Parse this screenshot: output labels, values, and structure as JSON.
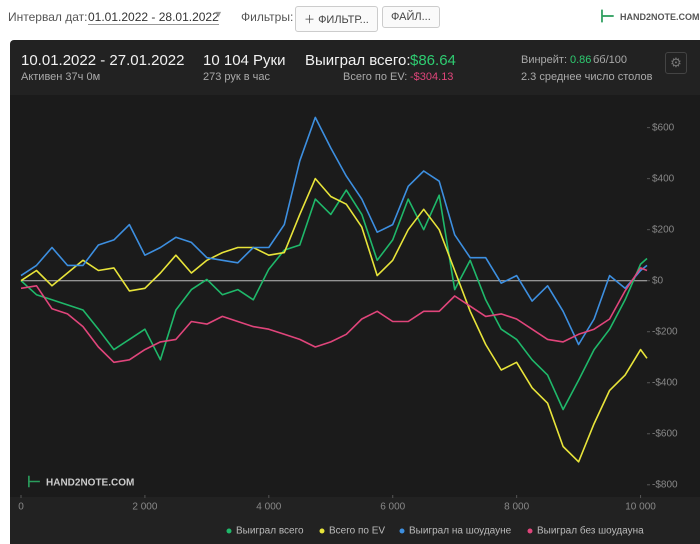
{
  "toolbar": {
    "date_label": "Интервал дат:",
    "date_range": "01.01.2022 - 28.01.2022",
    "filters_label": "Фильтры:",
    "filter_button": "ФИЛЬТР...",
    "file_button": "ФАЙЛ...",
    "logo": "HAND2NOTE.COM"
  },
  "stats": {
    "period": "10.01.2022 - 27.01.2022",
    "active": "Активен 37ч 0м",
    "hands": "10 104 Руки",
    "hands_per_hour": "273 рук в час",
    "won_label": "Выиграл всего:",
    "won_value": "$86.64",
    "ev_label": "Всего по EV:",
    "ev_value": "-$304.13",
    "winrate_label": "Винрейт:",
    "winrate_value": "0.86",
    "winrate_unit": "бб/100",
    "tables": "2.3 среднее число столов"
  },
  "watermark": "HAND2NOTE.COM",
  "chart_data": {
    "type": "line",
    "x": [
      0,
      250,
      500,
      750,
      1000,
      1250,
      1500,
      1750,
      2000,
      2250,
      2500,
      2750,
      3000,
      3250,
      3500,
      3750,
      4000,
      4250,
      4500,
      4750,
      5000,
      5250,
      5500,
      5750,
      6000,
      6250,
      6500,
      6750,
      7000,
      7250,
      7500,
      7750,
      8000,
      8250,
      8500,
      8750,
      9000,
      9250,
      9500,
      9750,
      10000,
      10104
    ],
    "series": [
      {
        "name": "Выиграл всего",
        "color": "#1fb86a",
        "values": [
          0,
          -55,
          -75,
          -95,
          -115,
          -190,
          -270,
          -230,
          -190,
          -310,
          -115,
          -35,
          5,
          -55,
          -35,
          -75,
          45,
          120,
          140,
          320,
          260,
          355,
          260,
          80,
          160,
          320,
          200,
          335,
          -35,
          80,
          -75,
          -190,
          -230,
          -310,
          -370,
          -505,
          -390,
          -270,
          -190,
          -75,
          65,
          87
        ]
      },
      {
        "name": "Всего по EV",
        "color": "#e8e43a",
        "values": [
          0,
          40,
          -20,
          30,
          80,
          40,
          50,
          -40,
          -30,
          30,
          100,
          30,
          80,
          110,
          130,
          130,
          100,
          110,
          260,
          400,
          330,
          300,
          210,
          20,
          80,
          200,
          280,
          200,
          40,
          -120,
          -250,
          -350,
          -320,
          -420,
          -480,
          -650,
          -710,
          -560,
          -430,
          -370,
          -270,
          -304
        ]
      },
      {
        "name": "Выиграл на шоудауне",
        "color": "#3d8fe0",
        "values": [
          20,
          60,
          130,
          60,
          60,
          140,
          160,
          220,
          100,
          130,
          170,
          150,
          90,
          80,
          70,
          130,
          130,
          220,
          470,
          640,
          520,
          410,
          320,
          190,
          220,
          370,
          430,
          390,
          180,
          90,
          90,
          -10,
          20,
          -80,
          -20,
          -120,
          -250,
          -150,
          20,
          -30,
          40,
          60
        ]
      },
      {
        "name": "Выиграл без шоудауна",
        "color": "#e0457b",
        "values": [
          -30,
          -20,
          -110,
          -130,
          -180,
          -260,
          -320,
          -310,
          -270,
          -240,
          -230,
          -160,
          -170,
          -140,
          -160,
          -180,
          -190,
          -210,
          -230,
          -260,
          -240,
          -210,
          -150,
          -120,
          -160,
          -160,
          -120,
          -120,
          -60,
          -100,
          -140,
          -130,
          -150,
          -190,
          -230,
          -240,
          -210,
          -190,
          -150,
          -40,
          50,
          40
        ]
      }
    ],
    "xlim": [
      0,
      10104
    ],
    "ylim": [
      -840,
      720
    ],
    "xticks": [
      0,
      {
        "value": 2000,
        "label": "2 000"
      },
      {
        "value": 4000,
        "label": "4 000"
      },
      {
        "value": 6000,
        "label": "6 000"
      },
      {
        "value": 8000,
        "label": "8 000"
      },
      {
        "value": 10000,
        "label": "10 000"
      }
    ],
    "yticks": [
      {
        "value": 600,
        "label": "$600"
      },
      {
        "value": 400,
        "label": "$400"
      },
      {
        "value": 200,
        "label": "$200"
      },
      {
        "value": 0,
        "label": "$0"
      },
      {
        "value": -200,
        "label": "-$200"
      },
      {
        "value": -400,
        "label": "-$400"
      },
      {
        "value": -600,
        "label": "-$600"
      },
      {
        "value": -800,
        "label": "-$800"
      }
    ]
  }
}
